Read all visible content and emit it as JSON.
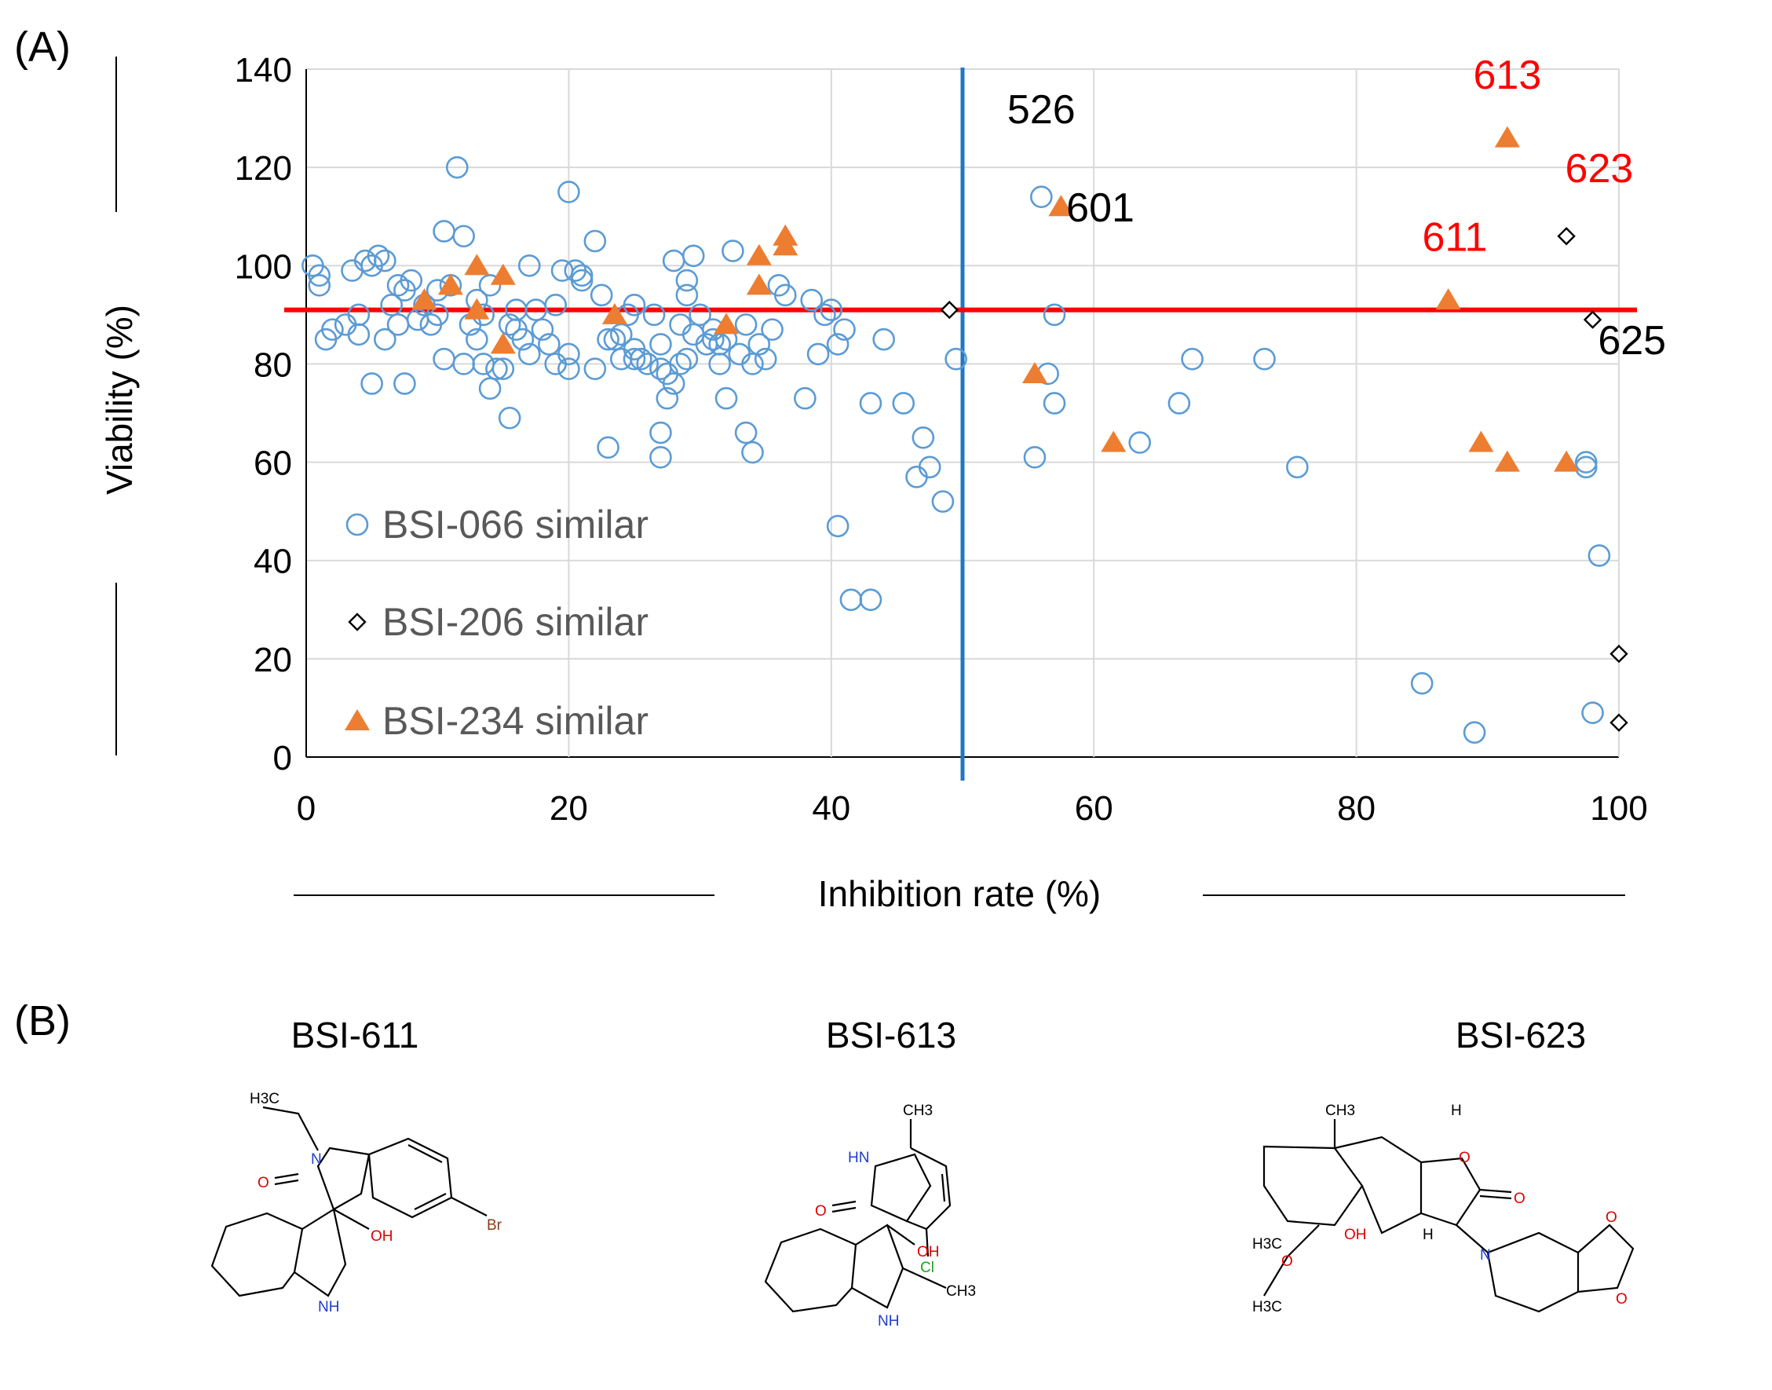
{
  "panel_a_label": "(A)",
  "panel_b_label": "(B)",
  "chart_data": {
    "type": "scatter",
    "xlabel": "Inhibition rate (%)",
    "ylabel": "Viability (%)",
    "xlim": [
      0,
      100
    ],
    "ylim": [
      0,
      140
    ],
    "x_ticks": [
      "0",
      "20",
      "40",
      "60",
      "80",
      "100"
    ],
    "y_ticks": [
      "0",
      "20",
      "40",
      "60",
      "80",
      "100",
      "120",
      "140"
    ],
    "grid": true,
    "threshold_x": 50,
    "threshold_y": 91,
    "colors": {
      "bsi066": "#5b9bd5",
      "bsi206": "#000000",
      "bsi234": "#ed7d31",
      "vline": "#1f77c4",
      "hline": "#ff0000",
      "red_label": "#ff0000",
      "black_label": "#000000",
      "legend_text": "#595959"
    },
    "legend": [
      "BSI-066 similar",
      "BSI-206 similar",
      "BSI-234 similar"
    ],
    "series": [
      {
        "name": "BSI-066 similar",
        "marker": "circle",
        "points": [
          [
            0.5,
            100
          ],
          [
            1,
            96
          ],
          [
            1.5,
            85
          ],
          [
            2,
            87
          ],
          [
            1,
            98
          ],
          [
            3,
            88
          ],
          [
            3.5,
            99
          ],
          [
            4,
            90
          ],
          [
            4,
            86
          ],
          [
            4.5,
            101
          ],
          [
            5,
            100
          ],
          [
            5,
            76
          ],
          [
            5.5,
            102
          ],
          [
            6,
            101
          ],
          [
            6,
            85
          ],
          [
            6.5,
            92
          ],
          [
            7,
            96
          ],
          [
            7,
            88
          ],
          [
            7.5,
            95
          ],
          [
            7.5,
            76
          ],
          [
            8,
            97
          ],
          [
            8.5,
            89
          ],
          [
            9,
            92
          ],
          [
            9.5,
            88
          ],
          [
            10,
            95
          ],
          [
            10,
            90
          ],
          [
            10.5,
            81
          ],
          [
            10.5,
            107
          ],
          [
            11,
            96
          ],
          [
            12,
            80
          ],
          [
            11.5,
            120
          ],
          [
            12,
            106
          ],
          [
            12.5,
            88
          ],
          [
            13,
            85
          ],
          [
            13,
            93
          ],
          [
            13.5,
            90
          ],
          [
            13.5,
            80
          ],
          [
            14,
            75
          ],
          [
            14,
            96
          ],
          [
            14.5,
            79
          ],
          [
            15,
            79
          ],
          [
            15.5,
            88
          ],
          [
            15.5,
            69
          ],
          [
            16,
            91
          ],
          [
            16,
            87
          ],
          [
            16.5,
            85
          ],
          [
            17,
            82
          ],
          [
            17,
            100
          ],
          [
            17.5,
            91
          ],
          [
            18,
            87
          ],
          [
            18.5,
            84
          ],
          [
            19,
            80
          ],
          [
            19,
            92
          ],
          [
            19.5,
            99
          ],
          [
            20,
            115
          ],
          [
            20,
            79
          ],
          [
            20,
            82
          ],
          [
            20.5,
            99
          ],
          [
            21,
            97
          ],
          [
            21,
            98
          ],
          [
            22,
            79
          ],
          [
            22,
            105
          ],
          [
            22.5,
            94
          ],
          [
            23,
            85
          ],
          [
            23,
            63
          ],
          [
            23.5,
            85
          ],
          [
            24,
            86
          ],
          [
            24,
            81
          ],
          [
            24.5,
            90
          ],
          [
            25,
            83
          ],
          [
            25,
            81
          ],
          [
            25,
            92
          ],
          [
            25.5,
            81
          ],
          [
            26,
            80
          ],
          [
            26.5,
            90
          ],
          [
            27,
            84
          ],
          [
            27,
            79
          ],
          [
            27,
            61
          ],
          [
            27,
            66
          ],
          [
            27.5,
            78
          ],
          [
            27.5,
            73
          ],
          [
            28,
            76
          ],
          [
            28,
            101
          ],
          [
            28.5,
            80
          ],
          [
            28.5,
            88
          ],
          [
            29,
            81
          ],
          [
            29,
            94
          ],
          [
            29,
            97
          ],
          [
            29.5,
            86
          ],
          [
            29.5,
            102
          ],
          [
            30,
            90
          ],
          [
            30.5,
            84
          ],
          [
            31,
            85
          ],
          [
            31,
            87
          ],
          [
            31.5,
            80
          ],
          [
            31.5,
            84
          ],
          [
            32,
            73
          ],
          [
            32,
            85
          ],
          [
            32.5,
            103
          ],
          [
            33,
            82
          ],
          [
            33.5,
            66
          ],
          [
            33.5,
            88
          ],
          [
            34,
            80
          ],
          [
            34,
            62
          ],
          [
            34.5,
            84
          ],
          [
            35,
            81
          ],
          [
            35.5,
            87
          ],
          [
            36,
            96
          ],
          [
            36.5,
            94
          ],
          [
            38,
            73
          ],
          [
            38.5,
            93
          ],
          [
            39,
            82
          ],
          [
            39.5,
            90
          ],
          [
            40,
            91
          ],
          [
            40.5,
            84
          ],
          [
            40.5,
            47
          ],
          [
            41,
            87
          ],
          [
            41.5,
            32
          ],
          [
            43,
            72
          ],
          [
            43,
            32
          ],
          [
            44,
            85
          ],
          [
            45.5,
            72
          ],
          [
            46.5,
            57
          ],
          [
            47,
            65
          ],
          [
            47.5,
            59
          ],
          [
            48.5,
            52
          ],
          [
            49.5,
            81
          ],
          [
            55.5,
            61
          ],
          [
            56,
            114
          ],
          [
            56.5,
            78
          ],
          [
            57,
            90
          ],
          [
            57,
            72
          ],
          [
            63.5,
            64
          ],
          [
            66.5,
            72
          ],
          [
            67.5,
            81
          ],
          [
            73,
            81
          ],
          [
            75.5,
            59
          ],
          [
            85,
            15
          ],
          [
            89,
            5
          ],
          [
            97.5,
            59
          ],
          [
            97.5,
            60
          ],
          [
            98,
            9
          ],
          [
            98.5,
            41
          ]
        ]
      },
      {
        "name": "BSI-206 similar",
        "marker": "diamond",
        "points": [
          [
            49,
            91
          ],
          [
            96,
            106
          ],
          [
            98,
            89
          ],
          [
            100,
            21
          ],
          [
            100,
            7
          ]
        ]
      },
      {
        "name": "BSI-234 similar",
        "marker": "triangle",
        "points": [
          [
            9,
            93
          ],
          [
            11,
            96
          ],
          [
            13,
            100
          ],
          [
            13,
            91
          ],
          [
            15,
            98
          ],
          [
            15,
            84
          ],
          [
            23.5,
            90
          ],
          [
            32,
            88
          ],
          [
            34.5,
            102
          ],
          [
            34.5,
            96
          ],
          [
            36.5,
            106
          ],
          [
            36.5,
            104
          ],
          [
            55.5,
            78
          ],
          [
            57.5,
            112
          ],
          [
            61.5,
            64
          ],
          [
            87,
            93
          ],
          [
            91.5,
            126
          ],
          [
            89.5,
            64
          ],
          [
            91.5,
            60
          ],
          [
            96,
            60
          ]
        ]
      }
    ],
    "annotations": [
      {
        "text": "526",
        "x": 56,
        "y": 129,
        "color": "black"
      },
      {
        "text": "601",
        "x": 60.5,
        "y": 109,
        "color": "black"
      },
      {
        "text": "613",
        "x": 91.5,
        "y": 136,
        "color": "red"
      },
      {
        "text": "623",
        "x": 98.5,
        "y": 117,
        "color": "red"
      },
      {
        "text": "611",
        "x": 87.5,
        "y": 103,
        "color": "red"
      },
      {
        "text": "625",
        "x": 101,
        "y": 82,
        "color": "black"
      }
    ]
  },
  "structures": [
    {
      "title": "BSI-611",
      "labels": {
        "ethyl": "H3C",
        "n": "N",
        "o": "O",
        "oh": "OH",
        "br": "Br",
        "nh": "NH"
      }
    },
    {
      "title": "BSI-613",
      "labels": {
        "ch3_top": "CH3",
        "nh_top": "HN",
        "o": "O",
        "oh": "OH",
        "cl": "Cl",
        "ch3_2": "CH3",
        "nh": "NH"
      }
    },
    {
      "title": "BSI-623",
      "labels": {
        "ch3_top": "CH3",
        "h_top": "H",
        "o_ring": "O",
        "o_carbonyl": "O",
        "oh": "OH",
        "h_bot": "H",
        "n": "N",
        "h3c": "H3C",
        "o_meth": "O",
        "h3c_meth": "H3C",
        "o_diox1": "O",
        "o_diox2": "O"
      }
    }
  ]
}
